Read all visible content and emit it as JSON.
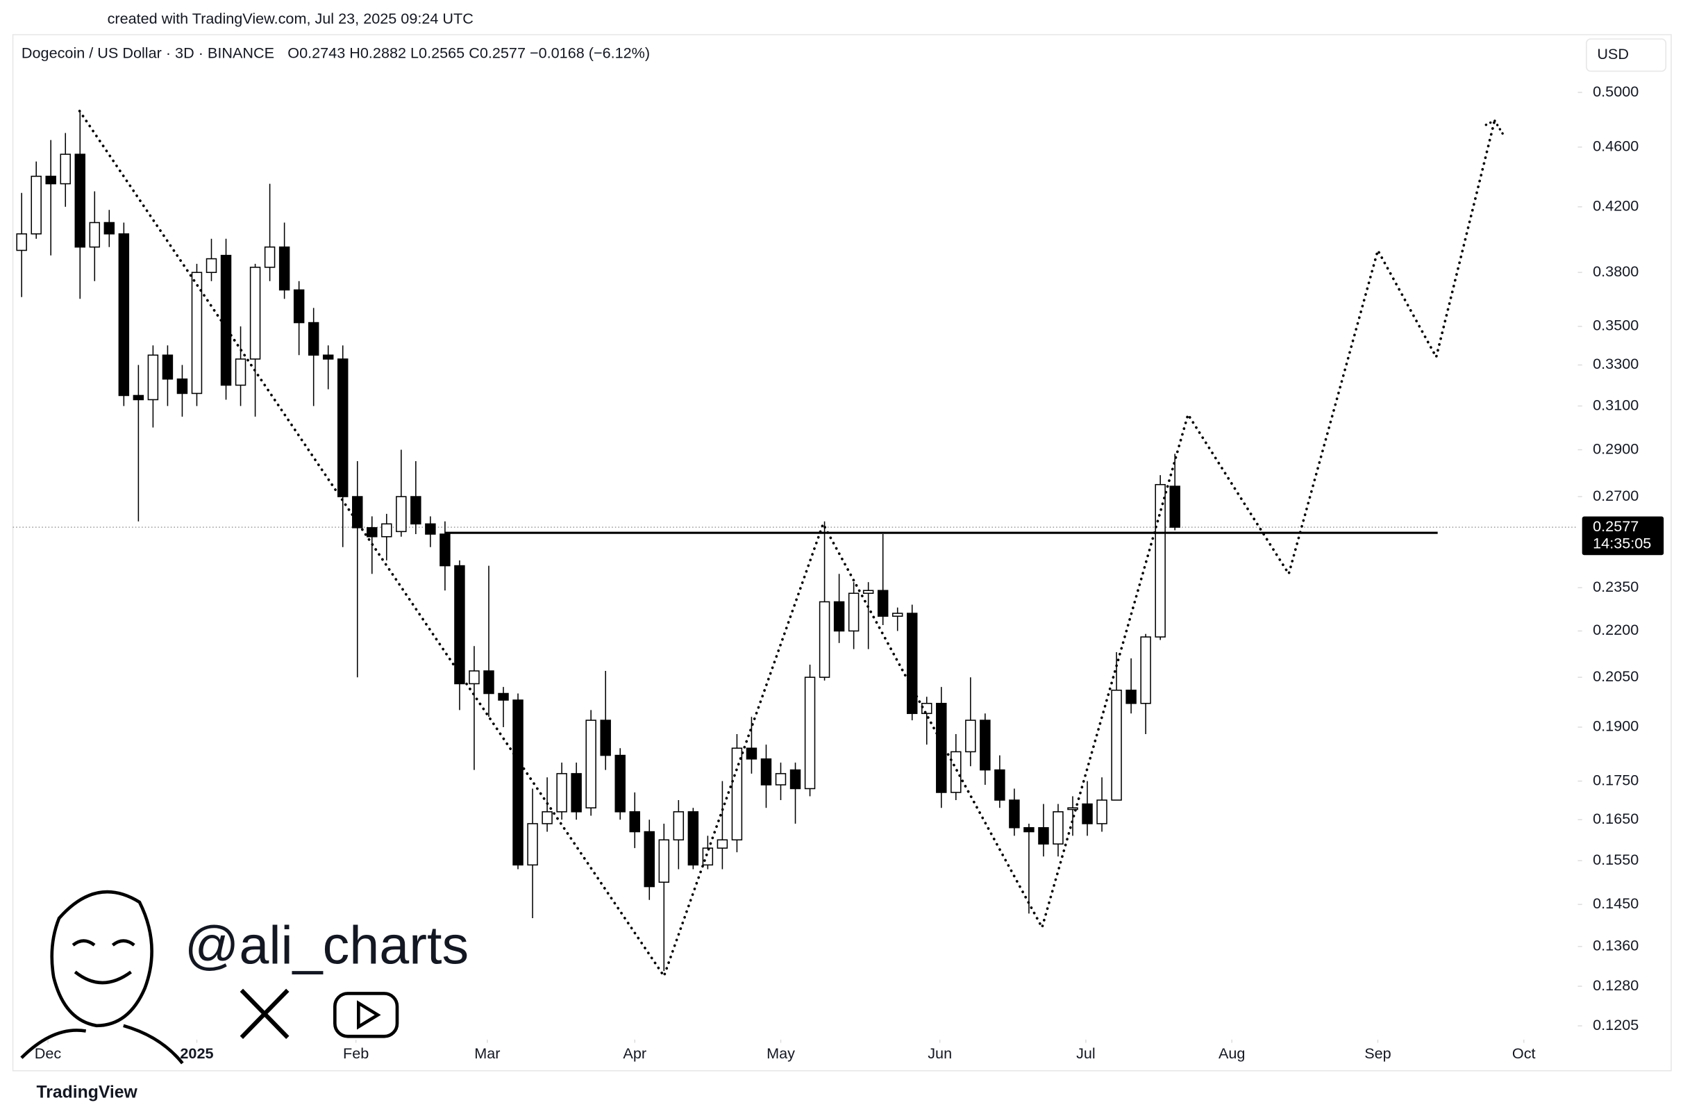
{
  "chart_data": {
    "type": "candlestick",
    "created": "created with TradingView.com, Jul 23, 2025 09:24 UTC",
    "title": "Dogecoin / US Dollar · 3D · BINANCE",
    "ohlc_text": "O0.2743  H0.2882  L0.2565  C0.2577  −0.0168 (−6.12%)",
    "currency": "USD",
    "author": "@ali_charts",
    "brand": "TradingView",
    "log_scale": true,
    "grid": false,
    "up_color": "#ffffff",
    "down_color": "#000000",
    "open": [
      0.393,
      0.403,
      0.44,
      0.435,
      0.455,
      0.395,
      0.41,
      0.403,
      0.315,
      0.313,
      0.335,
      0.323,
      0.316,
      0.38,
      0.39,
      0.32,
      0.333,
      0.383,
      0.395,
      0.37,
      0.352,
      0.335,
      0.333,
      0.27,
      0.2575,
      0.254,
      0.256,
      0.27,
      0.259,
      0.255,
      0.243,
      0.203,
      0.207,
      0.2,
      0.198,
      0.154,
      0.164,
      0.167,
      0.177,
      0.168,
      0.192,
      0.182,
      0.167,
      0.162,
      0.15,
      0.16,
      0.167,
      0.154,
      0.158,
      0.16,
      0.184,
      0.181,
      0.174,
      0.178,
      0.173,
      0.205,
      0.23,
      0.22,
      0.233,
      0.234,
      0.225,
      0.226,
      0.194,
      0.197,
      0.172,
      0.183,
      0.192,
      0.178,
      0.17,
      0.163,
      0.163,
      0.159,
      0.168,
      0.169,
      0.164,
      0.17,
      0.201,
      0.197,
      0.218,
      0.2743
    ],
    "high": [
      0.429,
      0.45,
      0.465,
      0.47,
      0.485,
      0.43,
      0.418,
      0.41,
      0.33,
      0.34,
      0.34,
      0.33,
      0.385,
      0.4,
      0.4,
      0.35,
      0.385,
      0.435,
      0.41,
      0.375,
      0.36,
      0.34,
      0.34,
      0.285,
      0.262,
      0.263,
      0.29,
      0.285,
      0.262,
      0.26,
      0.245,
      0.215,
      0.243,
      0.202,
      0.2,
      0.173,
      0.176,
      0.18,
      0.18,
      0.195,
      0.207,
      0.184,
      0.172,
      0.165,
      0.164,
      0.17,
      0.168,
      0.161,
      0.175,
      0.188,
      0.193,
      0.185,
      0.18,
      0.18,
      0.209,
      0.26,
      0.24,
      0.237,
      0.237,
      0.255,
      0.228,
      0.229,
      0.199,
      0.202,
      0.188,
      0.205,
      0.194,
      0.182,
      0.173,
      0.164,
      0.169,
      0.169,
      0.171,
      0.175,
      0.176,
      0.213,
      0.211,
      0.219,
      0.279,
      0.2882
    ],
    "low": [
      0.366,
      0.4,
      0.39,
      0.42,
      0.365,
      0.375,
      0.395,
      0.31,
      0.26,
      0.3,
      0.31,
      0.305,
      0.31,
      0.375,
      0.313,
      0.31,
      0.305,
      0.375,
      0.365,
      0.335,
      0.31,
      0.318,
      0.25,
      0.205,
      0.24,
      0.245,
      0.254,
      0.255,
      0.25,
      0.234,
      0.195,
      0.178,
      0.193,
      0.19,
      0.153,
      0.142,
      0.162,
      0.165,
      0.165,
      0.166,
      0.178,
      0.165,
      0.158,
      0.146,
      0.131,
      0.153,
      0.153,
      0.153,
      0.153,
      0.157,
      0.177,
      0.168,
      0.17,
      0.164,
      0.171,
      0.204,
      0.216,
      0.214,
      0.214,
      0.222,
      0.22,
      0.192,
      0.185,
      0.168,
      0.17,
      0.179,
      0.174,
      0.168,
      0.161,
      0.143,
      0.156,
      0.156,
      0.161,
      0.161,
      0.162,
      0.17,
      0.194,
      0.188,
      0.217,
      0.2565
    ],
    "close": [
      0.403,
      0.44,
      0.435,
      0.455,
      0.395,
      0.41,
      0.403,
      0.315,
      0.313,
      0.335,
      0.323,
      0.316,
      0.38,
      0.388,
      0.32,
      0.333,
      0.383,
      0.395,
      0.37,
      0.352,
      0.335,
      0.333,
      0.27,
      0.2575,
      0.254,
      0.259,
      0.27,
      0.259,
      0.255,
      0.243,
      0.203,
      0.207,
      0.2,
      0.198,
      0.154,
      0.164,
      0.167,
      0.177,
      0.167,
      0.192,
      0.182,
      0.167,
      0.162,
      0.149,
      0.16,
      0.167,
      0.154,
      0.158,
      0.16,
      0.184,
      0.181,
      0.174,
      0.177,
      0.173,
      0.205,
      0.23,
      0.22,
      0.233,
      0.234,
      0.225,
      0.226,
      0.194,
      0.197,
      0.172,
      0.183,
      0.192,
      0.178,
      0.17,
      0.163,
      0.162,
      0.159,
      0.167,
      0.168,
      0.164,
      0.17,
      0.201,
      0.197,
      0.218,
      0.275,
      0.2577
    ],
    "xlim": [
      -0.6,
      106.6
    ],
    "xticks": [
      {
        "value": 1.8,
        "label": "Dec"
      },
      {
        "value": 12,
        "label": "2025"
      },
      {
        "value": 22.9,
        "label": "Feb"
      },
      {
        "value": 31.9,
        "label": "Mar"
      },
      {
        "value": 42,
        "label": "Apr"
      },
      {
        "value": 52,
        "label": "May"
      },
      {
        "value": 62.9,
        "label": "Jun"
      },
      {
        "value": 72.9,
        "label": "Jul"
      },
      {
        "value": 82.9,
        "label": "Aug"
      },
      {
        "value": 92.9,
        "label": "Sep"
      },
      {
        "value": 102.9,
        "label": "Oct"
      }
    ],
    "ylim": [
      0.118,
      0.546
    ],
    "yticks": [
      {
        "value": 0.5,
        "label": "0.5000"
      },
      {
        "value": 0.46,
        "label": "0.4600"
      },
      {
        "value": 0.42,
        "label": "0.4200"
      },
      {
        "value": 0.38,
        "label": "0.3800"
      },
      {
        "value": 0.35,
        "label": "0.3500"
      },
      {
        "value": 0.33,
        "label": "0.3300"
      },
      {
        "value": 0.31,
        "label": "0.3100"
      },
      {
        "value": 0.29,
        "label": "0.2900"
      },
      {
        "value": 0.27,
        "label": "0.2700"
      },
      {
        "value": 0.235,
        "label": "0.2350"
      },
      {
        "value": 0.22,
        "label": "0.2200"
      },
      {
        "value": 0.205,
        "label": "0.2050"
      },
      {
        "value": 0.19,
        "label": "0.1900"
      },
      {
        "value": 0.175,
        "label": "0.1750"
      },
      {
        "value": 0.165,
        "label": "0.1650"
      },
      {
        "value": 0.155,
        "label": "0.1550"
      },
      {
        "value": 0.145,
        "label": "0.1450"
      },
      {
        "value": 0.136,
        "label": "0.1360"
      },
      {
        "value": 0.128,
        "label": "0.1280"
      },
      {
        "value": 0.1205,
        "label": "0.1205"
      }
    ],
    "last_price": 0.2577,
    "countdown": "14:35:05",
    "support": {
      "value": 0.2555,
      "x": [
        29,
        97
      ]
    },
    "projection": {
      "x": [
        3.97,
        44,
        54.9,
        69.9,
        79.9,
        86.8,
        92.9,
        96.9,
        100.9
      ],
      "y": [
        0.486,
        0.13,
        0.259,
        0.14,
        0.306,
        0.24,
        0.393,
        0.334,
        0.479
      ]
    }
  }
}
